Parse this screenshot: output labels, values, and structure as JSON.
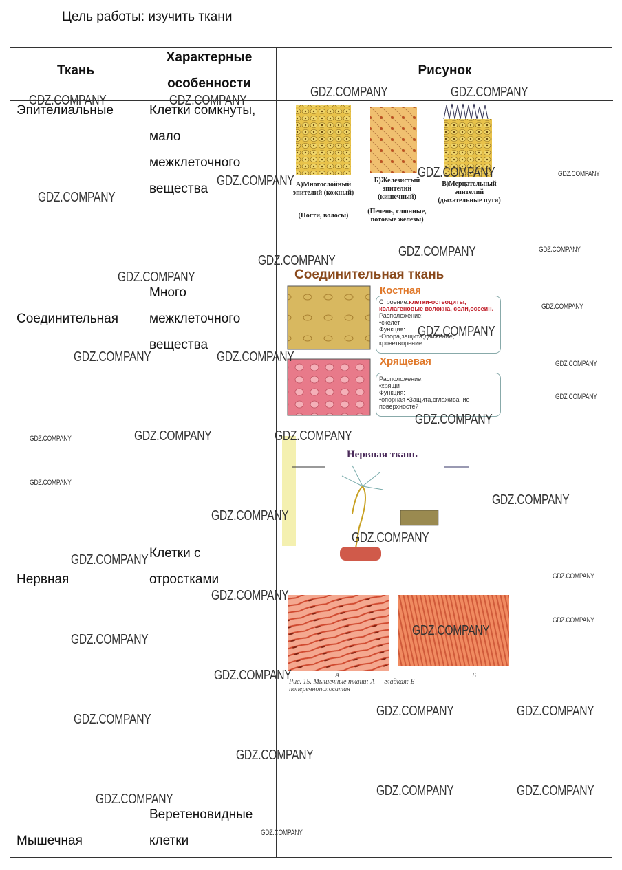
{
  "heading": "Цель работы: изучить ткани",
  "table": {
    "header": [
      "Ткань",
      "Характерные особенности",
      "Рисунок"
    ],
    "rows": [
      [
        "Эпителиальные",
        "Клетки сомкнуты, мало межклеточного вещества"
      ],
      [
        "Соединительная",
        "Много межклеточного вещества"
      ],
      [
        "Нервная",
        "Клетки с отростками"
      ],
      [
        "Мышечная",
        "Веретеновидные клетки"
      ]
    ]
  },
  "figures": {
    "epithelium": [
      {
        "label": "А)Многослойный эпителий (кожный)",
        "note": "(Ногти, волосы)"
      },
      {
        "label": "Б)Железистый эпителий (кишечный)",
        "note": "(Печень, слюнные, потовые железы)"
      },
      {
        "label": "В)Мерцательный эпителий (дыхательные пути)"
      }
    ],
    "connective": {
      "title": "Соединительная ткань",
      "bone": {
        "title": "Костная",
        "structure_label": "Строение:",
        "structure": "клетки-остеоциты, коллагеновые волокна, соли,оссеин.",
        "location": "Расположение:",
        "location_items": "•скелет",
        "function": "Функция:",
        "function_items": "•Опора,защита,движение, кроветворение"
      },
      "cartilage": {
        "title": "Хрящевая",
        "location": "Расположение:",
        "location_items": "•хрящи",
        "function": "Функция:",
        "function_items": "•опорная •Защита,сглаживание поверхностей"
      }
    },
    "nerve": {
      "title": "Нервная ткань"
    },
    "muscle": {
      "caption": "Рис. 15. Мышечные ткани: А — гладкая; Б — поперечнополосатая",
      "a": "А",
      "b": "Б"
    }
  },
  "watermark": "GDZ.COMPANY"
}
